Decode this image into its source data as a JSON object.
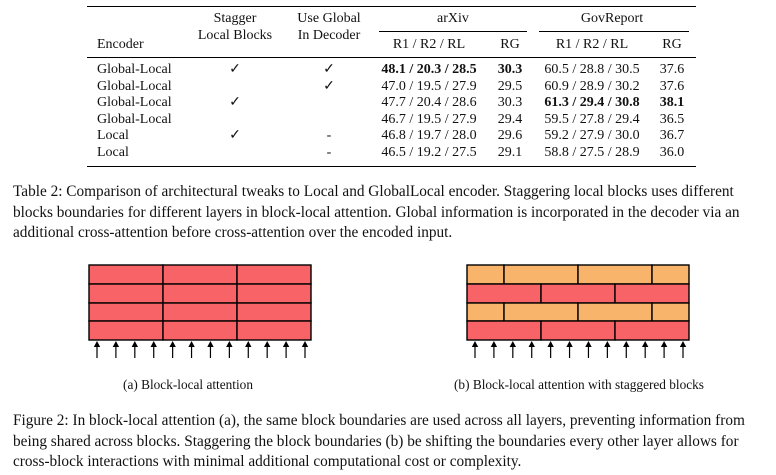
{
  "table": {
    "headers": {
      "encoder": "Encoder",
      "stagger_line1": "Stagger",
      "stagger_line2": "Local Blocks",
      "global_line1": "Use Global",
      "global_line2": "In Decoder",
      "arxiv": "arXiv",
      "govreport": "GovReport",
      "arxiv_r": "R1 / R2 / RL",
      "arxiv_rg": "RG",
      "gov_r": "R1 / R2 / RL",
      "gov_rg": "RG"
    },
    "rows": [
      {
        "encoder": "Global-Local",
        "stagger": "✓",
        "global": "✓",
        "arxiv_r": "48.1 / 20.3 / 28.5",
        "arxiv_rg": "30.3",
        "gov_r": "60.5 / 28.8 / 30.5",
        "gov_rg": "37.6",
        "bold_arxiv": true,
        "bold_gov": false
      },
      {
        "encoder": "Global-Local",
        "stagger": "",
        "global": "✓",
        "arxiv_r": "47.0 / 19.5 / 27.9",
        "arxiv_rg": "29.5",
        "gov_r": "60.9 / 28.9 / 30.2",
        "gov_rg": "37.6",
        "bold_arxiv": false,
        "bold_gov": false
      },
      {
        "encoder": "Global-Local",
        "stagger": "✓",
        "global": "",
        "arxiv_r": "47.7 / 20.4 / 28.6",
        "arxiv_rg": "30.3",
        "gov_r": "61.3 / 29.4 / 30.8",
        "gov_rg": "38.1",
        "bold_arxiv": false,
        "bold_gov": true
      },
      {
        "encoder": "Global-Local",
        "stagger": "",
        "global": "",
        "arxiv_r": "46.7 / 19.5 / 27.9",
        "arxiv_rg": "29.4",
        "gov_r": "59.5 / 27.8 / 29.4",
        "gov_rg": "36.5",
        "bold_arxiv": false,
        "bold_gov": false
      },
      {
        "encoder": "Local",
        "stagger": "✓",
        "global": "-",
        "arxiv_r": "46.8 / 19.7 / 28.0",
        "arxiv_rg": "29.6",
        "gov_r": "59.2 / 27.9 / 30.0",
        "gov_rg": "36.7",
        "bold_arxiv": false,
        "bold_gov": false
      },
      {
        "encoder": "Local",
        "stagger": "",
        "global": "-",
        "arxiv_r": "46.5 / 19.2 / 27.5",
        "arxiv_rg": "29.1",
        "gov_r": "58.8 / 27.5 / 28.9",
        "gov_rg": "36.0",
        "bold_arxiv": false,
        "bold_gov": false
      }
    ]
  },
  "table_caption": "Table 2: Comparison of architectural tweaks to Local and GlobalLocal encoder. Staggering local blocks uses different blocks boundaries for different layers in block-local attention. Global information is incorporated in the decoder via an additional cross-attention before cross-attention over the encoded input.",
  "figure": {
    "colors": {
      "red": "#f76367",
      "orange": "#f9b46b",
      "border": "#000000"
    },
    "arrow_glyph": "↑",
    "subcaption_a": "(a) Block-local attention",
    "subcaption_b": "(b) Block-local attention with staggered blocks",
    "caption": "Figure 2: In block-local attention (a), the same block boundaries are used across all layers, preventing information from being shared across blocks. Staggering the block boundaries (b) be shifting the boundaries every other layer allows for cross-block interactions with minimal additional computational cost or complexity."
  }
}
